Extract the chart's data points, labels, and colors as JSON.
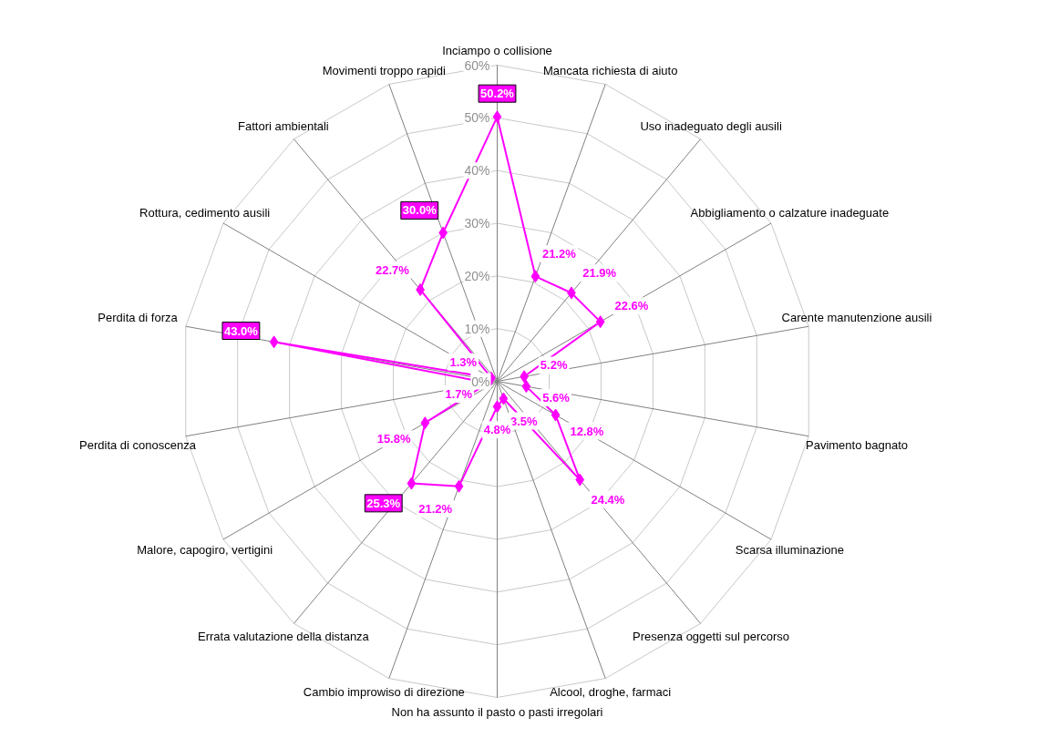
{
  "chart_data": {
    "type": "radar",
    "categories": [
      "Inciampo o collisione",
      "Mancata richiesta di aiuto",
      "Uso inadeguato degli ausili",
      "Abbigliamento o calzature inadeguate",
      "Carente manutenzione ausili",
      "Pavimento bagnato",
      "Scarsa illuminazione",
      "Presenza oggetti sul percorso",
      "Alcool, droghe, farmaci",
      "Non ha assunto il pasto o pasti irregolari",
      "Cambio improwiso di direzione",
      "Errata valutazione della distanza",
      "Malore, capogiro, vertigini",
      "Perdita di conoscenza",
      "Perdita di forza",
      "Rottura, cedimento ausili",
      "Fattori ambientali",
      "Movimenti troppo rapidi"
    ],
    "series": [
      {
        "color": "#ff00ff",
        "values": [
          50.2,
          21.2,
          21.9,
          22.6,
          5.2,
          5.6,
          12.8,
          24.4,
          3.5,
          4.8,
          21.2,
          25.3,
          15.8,
          1.7,
          43.0,
          1.3,
          22.7,
          30.0
        ],
        "value_labels": [
          "50.2%",
          "21.2%",
          "21.9%",
          "22.6%",
          "5.2%",
          "5.6%",
          "12.8%",
          "24.4%",
          "3.5%",
          "4.8%",
          "21.2%",
          "25.3%",
          "15.8%",
          "1.7%",
          "43.0%",
          "1.3%",
          "22.7%",
          "30.0%"
        ]
      }
    ],
    "ylim": [
      0,
      60
    ],
    "yticks": [
      {
        "value": 0,
        "label": "0%"
      },
      {
        "value": 10,
        "label": "10%"
      },
      {
        "value": 20,
        "label": "20%"
      },
      {
        "value": 30,
        "label": "30%"
      },
      {
        "value": 40,
        "label": "40%"
      },
      {
        "value": 50,
        "label": "50%"
      },
      {
        "value": 60,
        "label": "60%"
      }
    ],
    "grid": true,
    "marker": "diamond",
    "line_style": "solid"
  }
}
